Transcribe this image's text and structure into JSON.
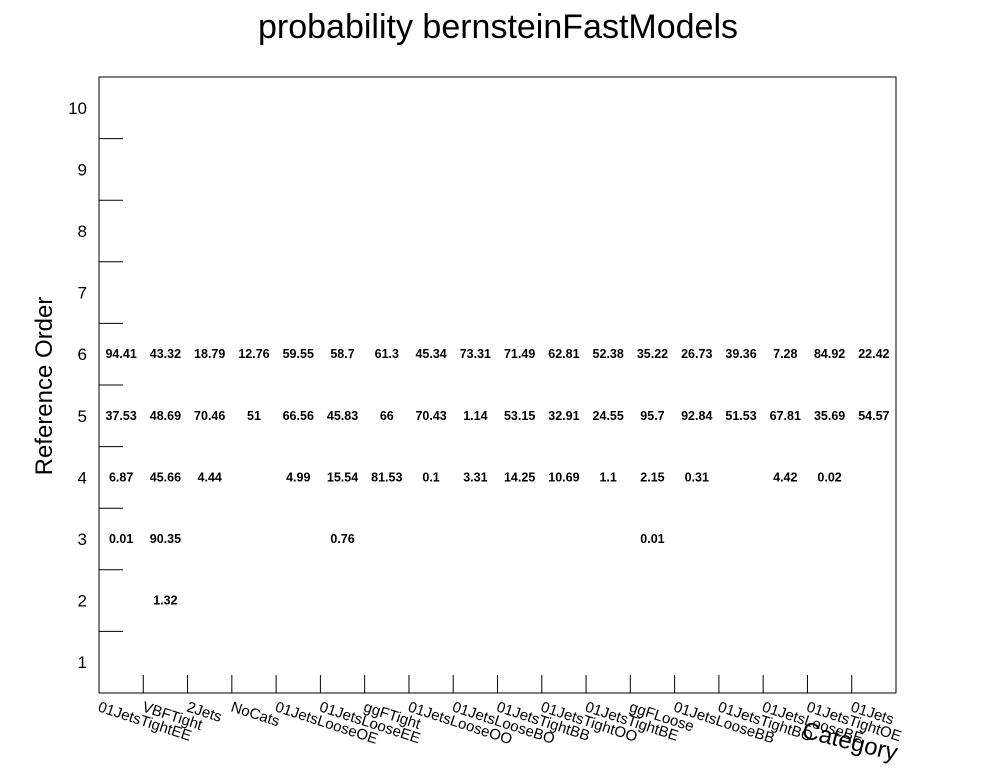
{
  "chart_data": {
    "type": "heatmap",
    "title": "probability bernsteinFastModels",
    "xlabel": "Category",
    "ylabel": "Reference Order",
    "categories": [
      "01JetsTightEE",
      "VBFTight",
      "2Jets",
      "NoCats",
      "01JetsLooseOE",
      "01JetsLooseEE",
      "ggFTight",
      "01JetsLooseOO",
      "01JetsLooseBO",
      "01JetsTightBB",
      "01JetsTightOO",
      "01JetsTightBE",
      "ggFLoose",
      "01JetsLooseBB",
      "01JetsTightBO",
      "01JetsLooseBE",
      "01JetsTightOE",
      "01Jets"
    ],
    "y": [
      "1",
      "2",
      "3",
      "4",
      "5",
      "6",
      "7",
      "8",
      "9",
      "10"
    ],
    "ylim": [
      0.5,
      10.5
    ],
    "cells": [
      [
        null,
        null,
        "0.01",
        "6.87",
        "37.53",
        "94.41",
        null,
        null,
        null,
        null
      ],
      [
        null,
        "1.32",
        "90.35",
        "45.66",
        "48.69",
        "43.32",
        null,
        null,
        null,
        null
      ],
      [
        null,
        null,
        null,
        "4.44",
        "70.46",
        "18.79",
        null,
        null,
        null,
        null
      ],
      [
        null,
        null,
        null,
        null,
        "51",
        "12.76",
        null,
        null,
        null,
        null
      ],
      [
        null,
        null,
        null,
        "4.99",
        "66.56",
        "59.55",
        null,
        null,
        null,
        null
      ],
      [
        null,
        null,
        "0.76",
        "15.54",
        "45.83",
        "58.7",
        null,
        null,
        null,
        null
      ],
      [
        null,
        null,
        null,
        "81.53",
        "66",
        "61.3",
        null,
        null,
        null,
        null
      ],
      [
        null,
        null,
        null,
        "0.1",
        "70.43",
        "45.34",
        null,
        null,
        null,
        null
      ],
      [
        null,
        null,
        null,
        "3.31",
        "1.14",
        "73.31",
        null,
        null,
        null,
        null
      ],
      [
        null,
        null,
        null,
        "14.25",
        "53.15",
        "71.49",
        null,
        null,
        null,
        null
      ],
      [
        null,
        null,
        null,
        "10.69",
        "32.91",
        "62.81",
        null,
        null,
        null,
        null
      ],
      [
        null,
        null,
        null,
        "1.1",
        "24.55",
        "52.38",
        null,
        null,
        null,
        null
      ],
      [
        null,
        null,
        "0.01",
        "2.15",
        "95.7",
        "35.22",
        null,
        null,
        null,
        null
      ],
      [
        null,
        null,
        null,
        "0.31",
        "92.84",
        "26.73",
        null,
        null,
        null,
        null
      ],
      [
        null,
        null,
        null,
        null,
        "51.53",
        "39.36",
        null,
        null,
        null,
        null
      ],
      [
        null,
        null,
        null,
        "4.42",
        "67.81",
        "7.28",
        null,
        null,
        null,
        null
      ],
      [
        null,
        null,
        null,
        "0.02",
        "35.69",
        "84.92",
        null,
        null,
        null,
        null
      ],
      [
        null,
        null,
        null,
        null,
        "54.57",
        "22.42",
        null,
        null,
        null,
        null
      ]
    ],
    "grid": false,
    "legend": "none"
  }
}
